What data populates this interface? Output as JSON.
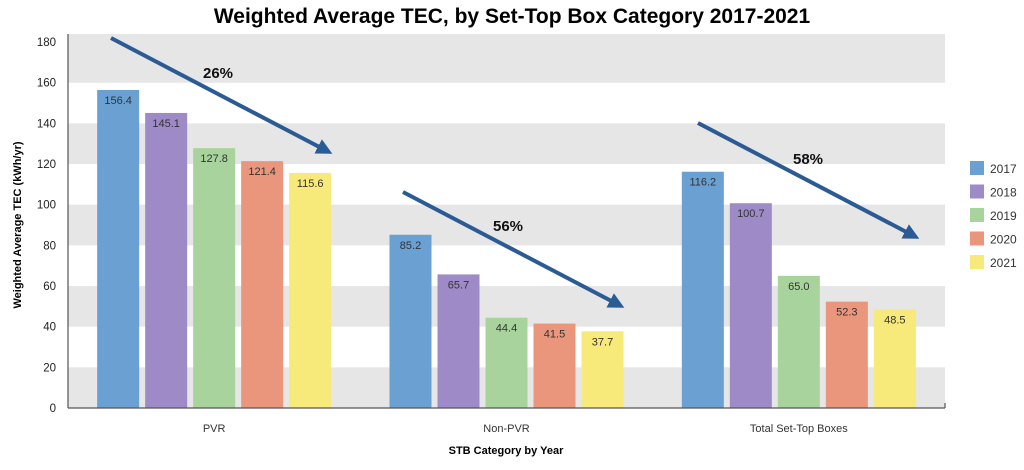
{
  "chart_data": {
    "type": "bar",
    "title": "Weighted Average TEC, by Set-Top Box Category 2017-2021",
    "xlabel": "STB Category by Year",
    "ylabel": "Weighted Average TEC (kWh/yr)",
    "ylim": [
      0,
      180
    ],
    "yticks": [
      0,
      20,
      40,
      60,
      80,
      100,
      120,
      140,
      160,
      180
    ],
    "categories": [
      "PVR",
      "Non-PVR",
      "Total Set-Top Boxes"
    ],
    "series": [
      {
        "name": "2017",
        "color": "#6aa0d2",
        "values": [
          156.4,
          85.2,
          116.2
        ],
        "labels": [
          "156.4",
          "85.2",
          "116.2"
        ]
      },
      {
        "name": "2018",
        "color": "#9d8ac7",
        "values": [
          145.1,
          65.7,
          100.7
        ],
        "labels": [
          "145.1",
          "65.7",
          "100.7"
        ]
      },
      {
        "name": "2019",
        "color": "#a9d39c",
        "values": [
          127.8,
          44.4,
          65.0
        ],
        "labels": [
          "127.8",
          "44.4",
          "65.0"
        ]
      },
      {
        "name": "2020",
        "color": "#e9967c",
        "values": [
          121.4,
          41.5,
          52.3
        ],
        "labels": [
          "121.4",
          "41.5",
          "52.3"
        ]
      },
      {
        "name": "2021",
        "color": "#f7e97a",
        "values": [
          115.6,
          37.7,
          48.5
        ],
        "labels": [
          "115.6",
          "37.7",
          "48.5"
        ]
      }
    ],
    "annotations": [
      "26%",
      "56%",
      "58%"
    ],
    "arrow_color": "#2b5b94",
    "grid": "alternating bands",
    "legend": "right"
  }
}
